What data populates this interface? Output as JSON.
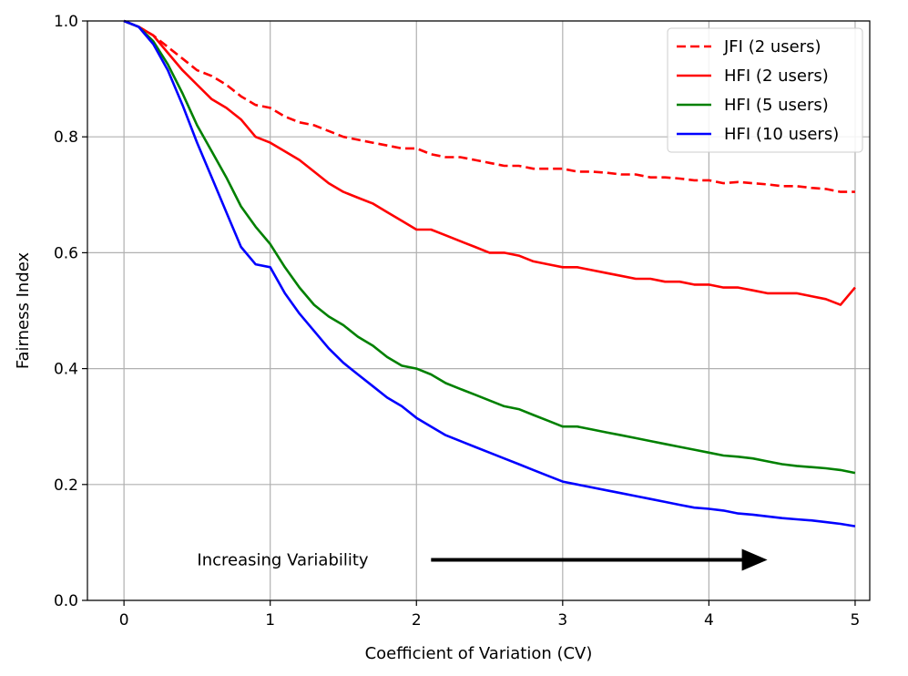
{
  "chart_data": {
    "type": "line",
    "title": "",
    "xlabel": "Coefficient of Variation (CV)",
    "ylabel": "Fairness Index",
    "xlim": [
      -0.25,
      5.1
    ],
    "ylim": [
      0.0,
      1.0
    ],
    "xticks": [
      0,
      1,
      2,
      3,
      4,
      5
    ],
    "xtick_labels": [
      "0",
      "1",
      "2",
      "3",
      "4",
      "5"
    ],
    "yticks": [
      0.0,
      0.2,
      0.4,
      0.6,
      0.8,
      1.0
    ],
    "ytick_labels": [
      "0.0",
      "0.2",
      "0.4",
      "0.6",
      "0.8",
      "1.0"
    ],
    "grid": true,
    "legend_position": "top-right",
    "series": [
      {
        "name": "JFI (2 users)",
        "color": "#ff0000",
        "style": "dashed",
        "x": [
          0,
          0.1,
          0.2,
          0.3,
          0.4,
          0.5,
          0.6,
          0.7,
          0.8,
          0.9,
          1.0,
          1.1,
          1.2,
          1.3,
          1.4,
          1.5,
          1.6,
          1.7,
          1.8,
          1.9,
          2.0,
          2.1,
          2.2,
          2.3,
          2.4,
          2.5,
          2.6,
          2.7,
          2.8,
          2.9,
          3.0,
          3.1,
          3.2,
          3.3,
          3.4,
          3.5,
          3.6,
          3.7,
          3.8,
          3.9,
          4.0,
          4.1,
          4.2,
          4.3,
          4.4,
          4.5,
          4.6,
          4.7,
          4.8,
          4.9,
          5.0
        ],
        "y": [
          1.0,
          0.99,
          0.975,
          0.955,
          0.935,
          0.915,
          0.905,
          0.89,
          0.87,
          0.855,
          0.85,
          0.835,
          0.825,
          0.82,
          0.81,
          0.8,
          0.795,
          0.79,
          0.785,
          0.78,
          0.78,
          0.77,
          0.765,
          0.765,
          0.76,
          0.755,
          0.75,
          0.75,
          0.745,
          0.745,
          0.745,
          0.74,
          0.74,
          0.738,
          0.735,
          0.735,
          0.73,
          0.73,
          0.728,
          0.725,
          0.725,
          0.72,
          0.722,
          0.72,
          0.718,
          0.715,
          0.715,
          0.712,
          0.71,
          0.705,
          0.705
        ]
      },
      {
        "name": "HFI (2 users)",
        "color": "#ff0000",
        "style": "solid",
        "x": [
          0,
          0.1,
          0.2,
          0.3,
          0.4,
          0.5,
          0.6,
          0.7,
          0.8,
          0.9,
          1.0,
          1.1,
          1.2,
          1.3,
          1.4,
          1.5,
          1.6,
          1.7,
          1.8,
          1.9,
          2.0,
          2.1,
          2.2,
          2.3,
          2.4,
          2.5,
          2.6,
          2.7,
          2.8,
          2.9,
          3.0,
          3.1,
          3.2,
          3.3,
          3.4,
          3.5,
          3.6,
          3.7,
          3.8,
          3.9,
          4.0,
          4.1,
          4.2,
          4.3,
          4.4,
          4.5,
          4.6,
          4.7,
          4.8,
          4.9,
          5.0
        ],
        "y": [
          1.0,
          0.99,
          0.975,
          0.945,
          0.915,
          0.89,
          0.865,
          0.85,
          0.83,
          0.8,
          0.79,
          0.775,
          0.76,
          0.74,
          0.72,
          0.705,
          0.695,
          0.685,
          0.67,
          0.655,
          0.64,
          0.64,
          0.63,
          0.62,
          0.61,
          0.6,
          0.6,
          0.595,
          0.585,
          0.58,
          0.575,
          0.575,
          0.57,
          0.565,
          0.56,
          0.555,
          0.555,
          0.55,
          0.55,
          0.545,
          0.545,
          0.54,
          0.54,
          0.535,
          0.53,
          0.53,
          0.53,
          0.525,
          0.52,
          0.51,
          0.54
        ]
      },
      {
        "name": "HFI (5 users)",
        "color": "#008000",
        "style": "solid",
        "x": [
          0,
          0.1,
          0.2,
          0.3,
          0.4,
          0.5,
          0.6,
          0.7,
          0.8,
          0.9,
          1.0,
          1.1,
          1.2,
          1.3,
          1.4,
          1.5,
          1.6,
          1.7,
          1.8,
          1.9,
          2.0,
          2.1,
          2.2,
          2.3,
          2.4,
          2.5,
          2.6,
          2.7,
          2.8,
          2.9,
          3.0,
          3.1,
          3.2,
          3.3,
          3.4,
          3.5,
          3.6,
          3.7,
          3.8,
          3.9,
          4.0,
          4.1,
          4.2,
          4.3,
          4.4,
          4.5,
          4.6,
          4.7,
          4.8,
          4.9,
          5.0
        ],
        "y": [
          1.0,
          0.99,
          0.965,
          0.925,
          0.875,
          0.82,
          0.775,
          0.73,
          0.68,
          0.645,
          0.615,
          0.575,
          0.54,
          0.51,
          0.49,
          0.475,
          0.455,
          0.44,
          0.42,
          0.405,
          0.4,
          0.39,
          0.375,
          0.365,
          0.355,
          0.345,
          0.335,
          0.33,
          0.32,
          0.31,
          0.3,
          0.3,
          0.295,
          0.29,
          0.285,
          0.28,
          0.275,
          0.27,
          0.265,
          0.26,
          0.255,
          0.25,
          0.248,
          0.245,
          0.24,
          0.235,
          0.232,
          0.23,
          0.228,
          0.225,
          0.22
        ]
      },
      {
        "name": "HFI (10 users)",
        "color": "#0000ff",
        "style": "solid",
        "x": [
          0,
          0.1,
          0.2,
          0.3,
          0.4,
          0.5,
          0.6,
          0.7,
          0.8,
          0.9,
          1.0,
          1.1,
          1.2,
          1.3,
          1.4,
          1.5,
          1.6,
          1.7,
          1.8,
          1.9,
          2.0,
          2.1,
          2.2,
          2.3,
          2.4,
          2.5,
          2.6,
          2.7,
          2.8,
          2.9,
          3.0,
          3.1,
          3.2,
          3.3,
          3.4,
          3.5,
          3.6,
          3.7,
          3.8,
          3.9,
          4.0,
          4.1,
          4.2,
          4.3,
          4.4,
          4.5,
          4.6,
          4.7,
          4.8,
          4.9,
          5.0
        ],
        "y": [
          1.0,
          0.99,
          0.96,
          0.915,
          0.855,
          0.79,
          0.73,
          0.67,
          0.61,
          0.58,
          0.575,
          0.53,
          0.495,
          0.465,
          0.435,
          0.41,
          0.39,
          0.37,
          0.35,
          0.335,
          0.315,
          0.3,
          0.285,
          0.275,
          0.265,
          0.255,
          0.245,
          0.235,
          0.225,
          0.215,
          0.205,
          0.2,
          0.195,
          0.19,
          0.185,
          0.18,
          0.175,
          0.17,
          0.165,
          0.16,
          0.158,
          0.155,
          0.15,
          0.148,
          0.145,
          0.142,
          0.14,
          0.138,
          0.135,
          0.132,
          0.128
        ]
      }
    ],
    "annotations": [
      {
        "text": "Increasing Variability",
        "arrow_from": [
          2.1,
          0.07
        ],
        "arrow_to": [
          4.4,
          0.07
        ],
        "text_x": 0.5,
        "text_y": 0.07
      }
    ]
  }
}
